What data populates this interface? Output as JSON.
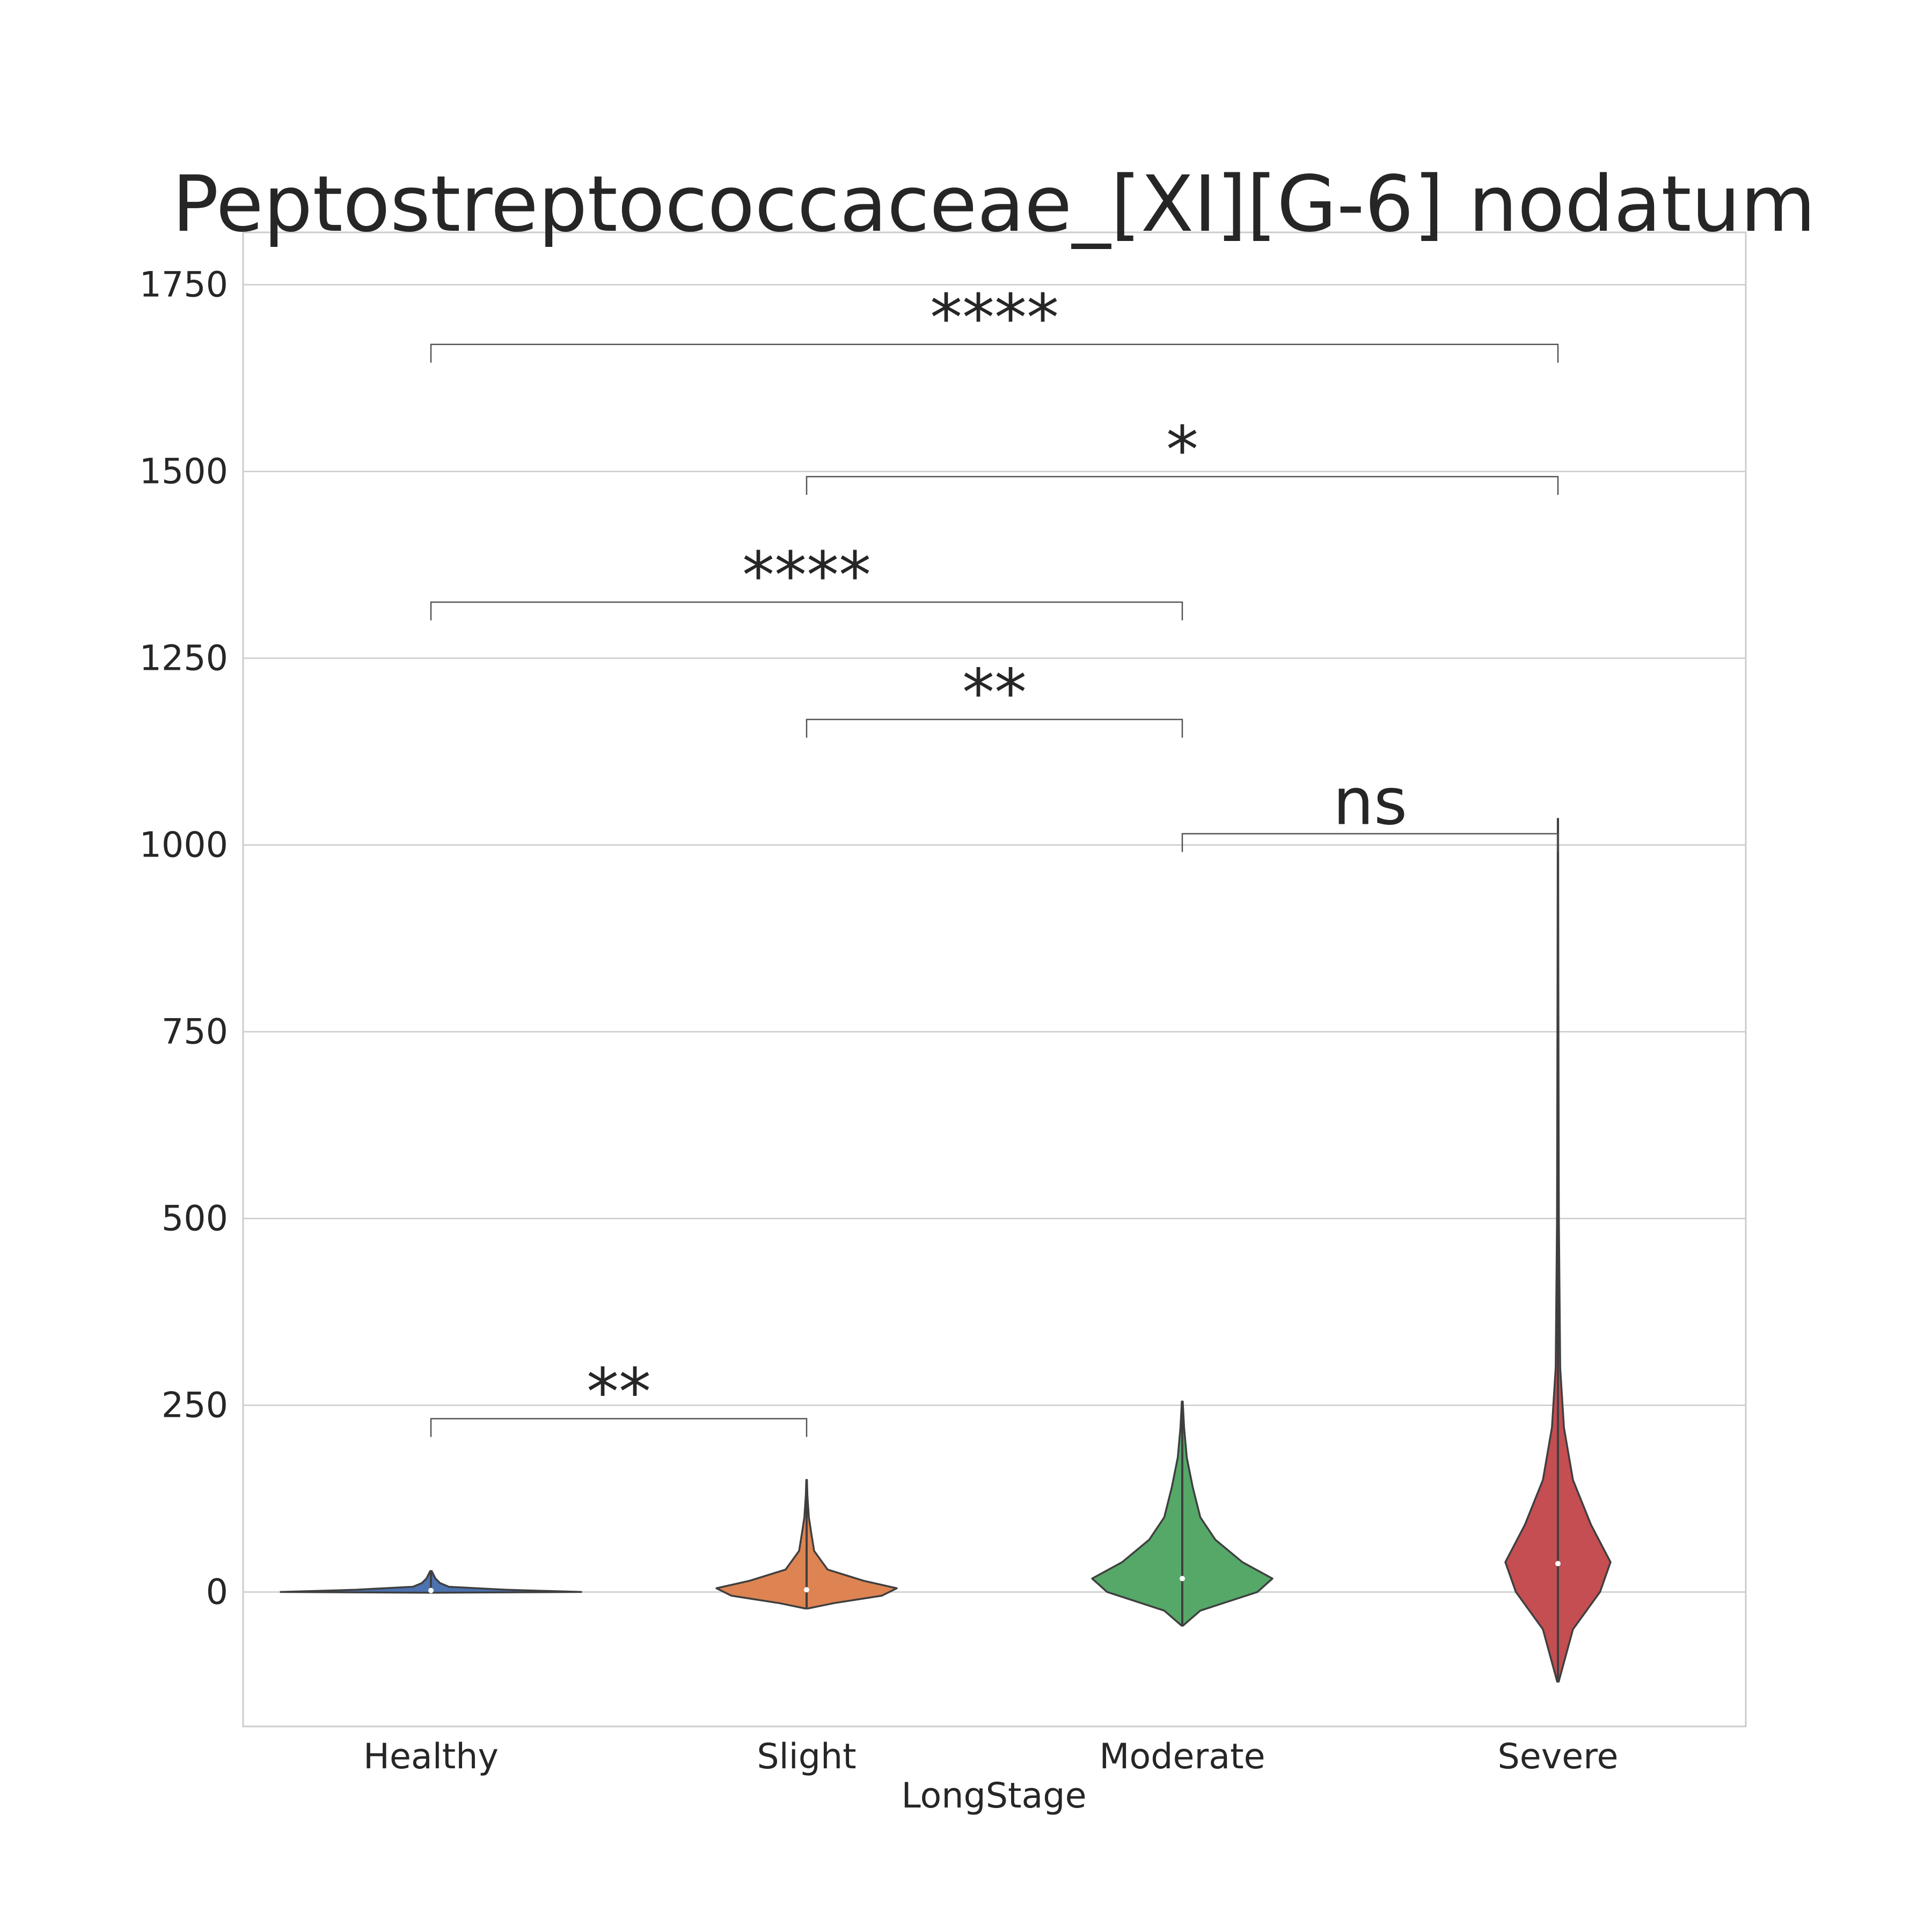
{
  "chart_data": {
    "type": "violin",
    "title": "Peptostreptococcaceae_[XI][G-6] nodatum",
    "xlabel": "LongStage",
    "ylabel": "",
    "categories": [
      "Healthy",
      "Slight",
      "Moderate",
      "Severe"
    ],
    "ylim": [
      -180,
      1820
    ],
    "yticks": [
      0,
      250,
      500,
      750,
      1000,
      1250,
      1500,
      1750
    ],
    "grid": true,
    "colors": [
      "#4c72b0",
      "#dd8452",
      "#55a868",
      "#c44e52"
    ],
    "violins": [
      {
        "category": "Healthy",
        "min": -1,
        "max": 28,
        "median": 2,
        "profile": [
          [
            -1,
            0.05
          ],
          [
            0,
            1.0
          ],
          [
            3,
            0.5
          ],
          [
            7,
            0.12
          ],
          [
            12,
            0.06
          ],
          [
            18,
            0.03
          ],
          [
            24,
            0.015
          ],
          [
            28,
            0.005
          ]
        ]
      },
      {
        "category": "Slight",
        "min": -22,
        "max": 150,
        "median": 3,
        "profile": [
          [
            -22,
            0.01
          ],
          [
            -15,
            0.18
          ],
          [
            -5,
            0.5
          ],
          [
            5,
            0.6
          ],
          [
            15,
            0.38
          ],
          [
            30,
            0.14
          ],
          [
            55,
            0.05
          ],
          [
            80,
            0.03
          ],
          [
            100,
            0.015
          ],
          [
            130,
            0.005
          ],
          [
            150,
            0.002
          ]
        ]
      },
      {
        "category": "Moderate",
        "min": -45,
        "max": 255,
        "median": 18,
        "profile": [
          [
            -45,
            0.005
          ],
          [
            -25,
            0.12
          ],
          [
            0,
            0.5
          ],
          [
            18,
            0.6
          ],
          [
            40,
            0.4
          ],
          [
            70,
            0.22
          ],
          [
            100,
            0.12
          ],
          [
            140,
            0.07
          ],
          [
            180,
            0.03
          ],
          [
            220,
            0.012
          ],
          [
            255,
            0.003
          ]
        ]
      },
      {
        "category": "Severe",
        "min": -120,
        "max": 1035,
        "median": 38,
        "profile": [
          [
            -120,
            0.005
          ],
          [
            -50,
            0.1
          ],
          [
            0,
            0.28
          ],
          [
            40,
            0.35
          ],
          [
            90,
            0.22
          ],
          [
            150,
            0.1
          ],
          [
            220,
            0.04
          ],
          [
            300,
            0.015
          ],
          [
            500,
            0.006
          ],
          [
            800,
            0.003
          ],
          [
            1035,
            0.001
          ]
        ]
      }
    ],
    "annotations": [
      {
        "from": "Healthy",
        "to": "Slight",
        "y": 232,
        "label": "**"
      },
      {
        "from": "Moderate",
        "to": "Severe",
        "y": 1015,
        "label": "ns"
      },
      {
        "from": "Slight",
        "to": "Moderate",
        "y": 1168,
        "label": "**"
      },
      {
        "from": "Healthy",
        "to": "Moderate",
        "y": 1325,
        "label": "****"
      },
      {
        "from": "Slight",
        "to": "Severe",
        "y": 1493,
        "label": "*"
      },
      {
        "from": "Healthy",
        "to": "Severe",
        "y": 1670,
        "label": "****"
      }
    ]
  }
}
